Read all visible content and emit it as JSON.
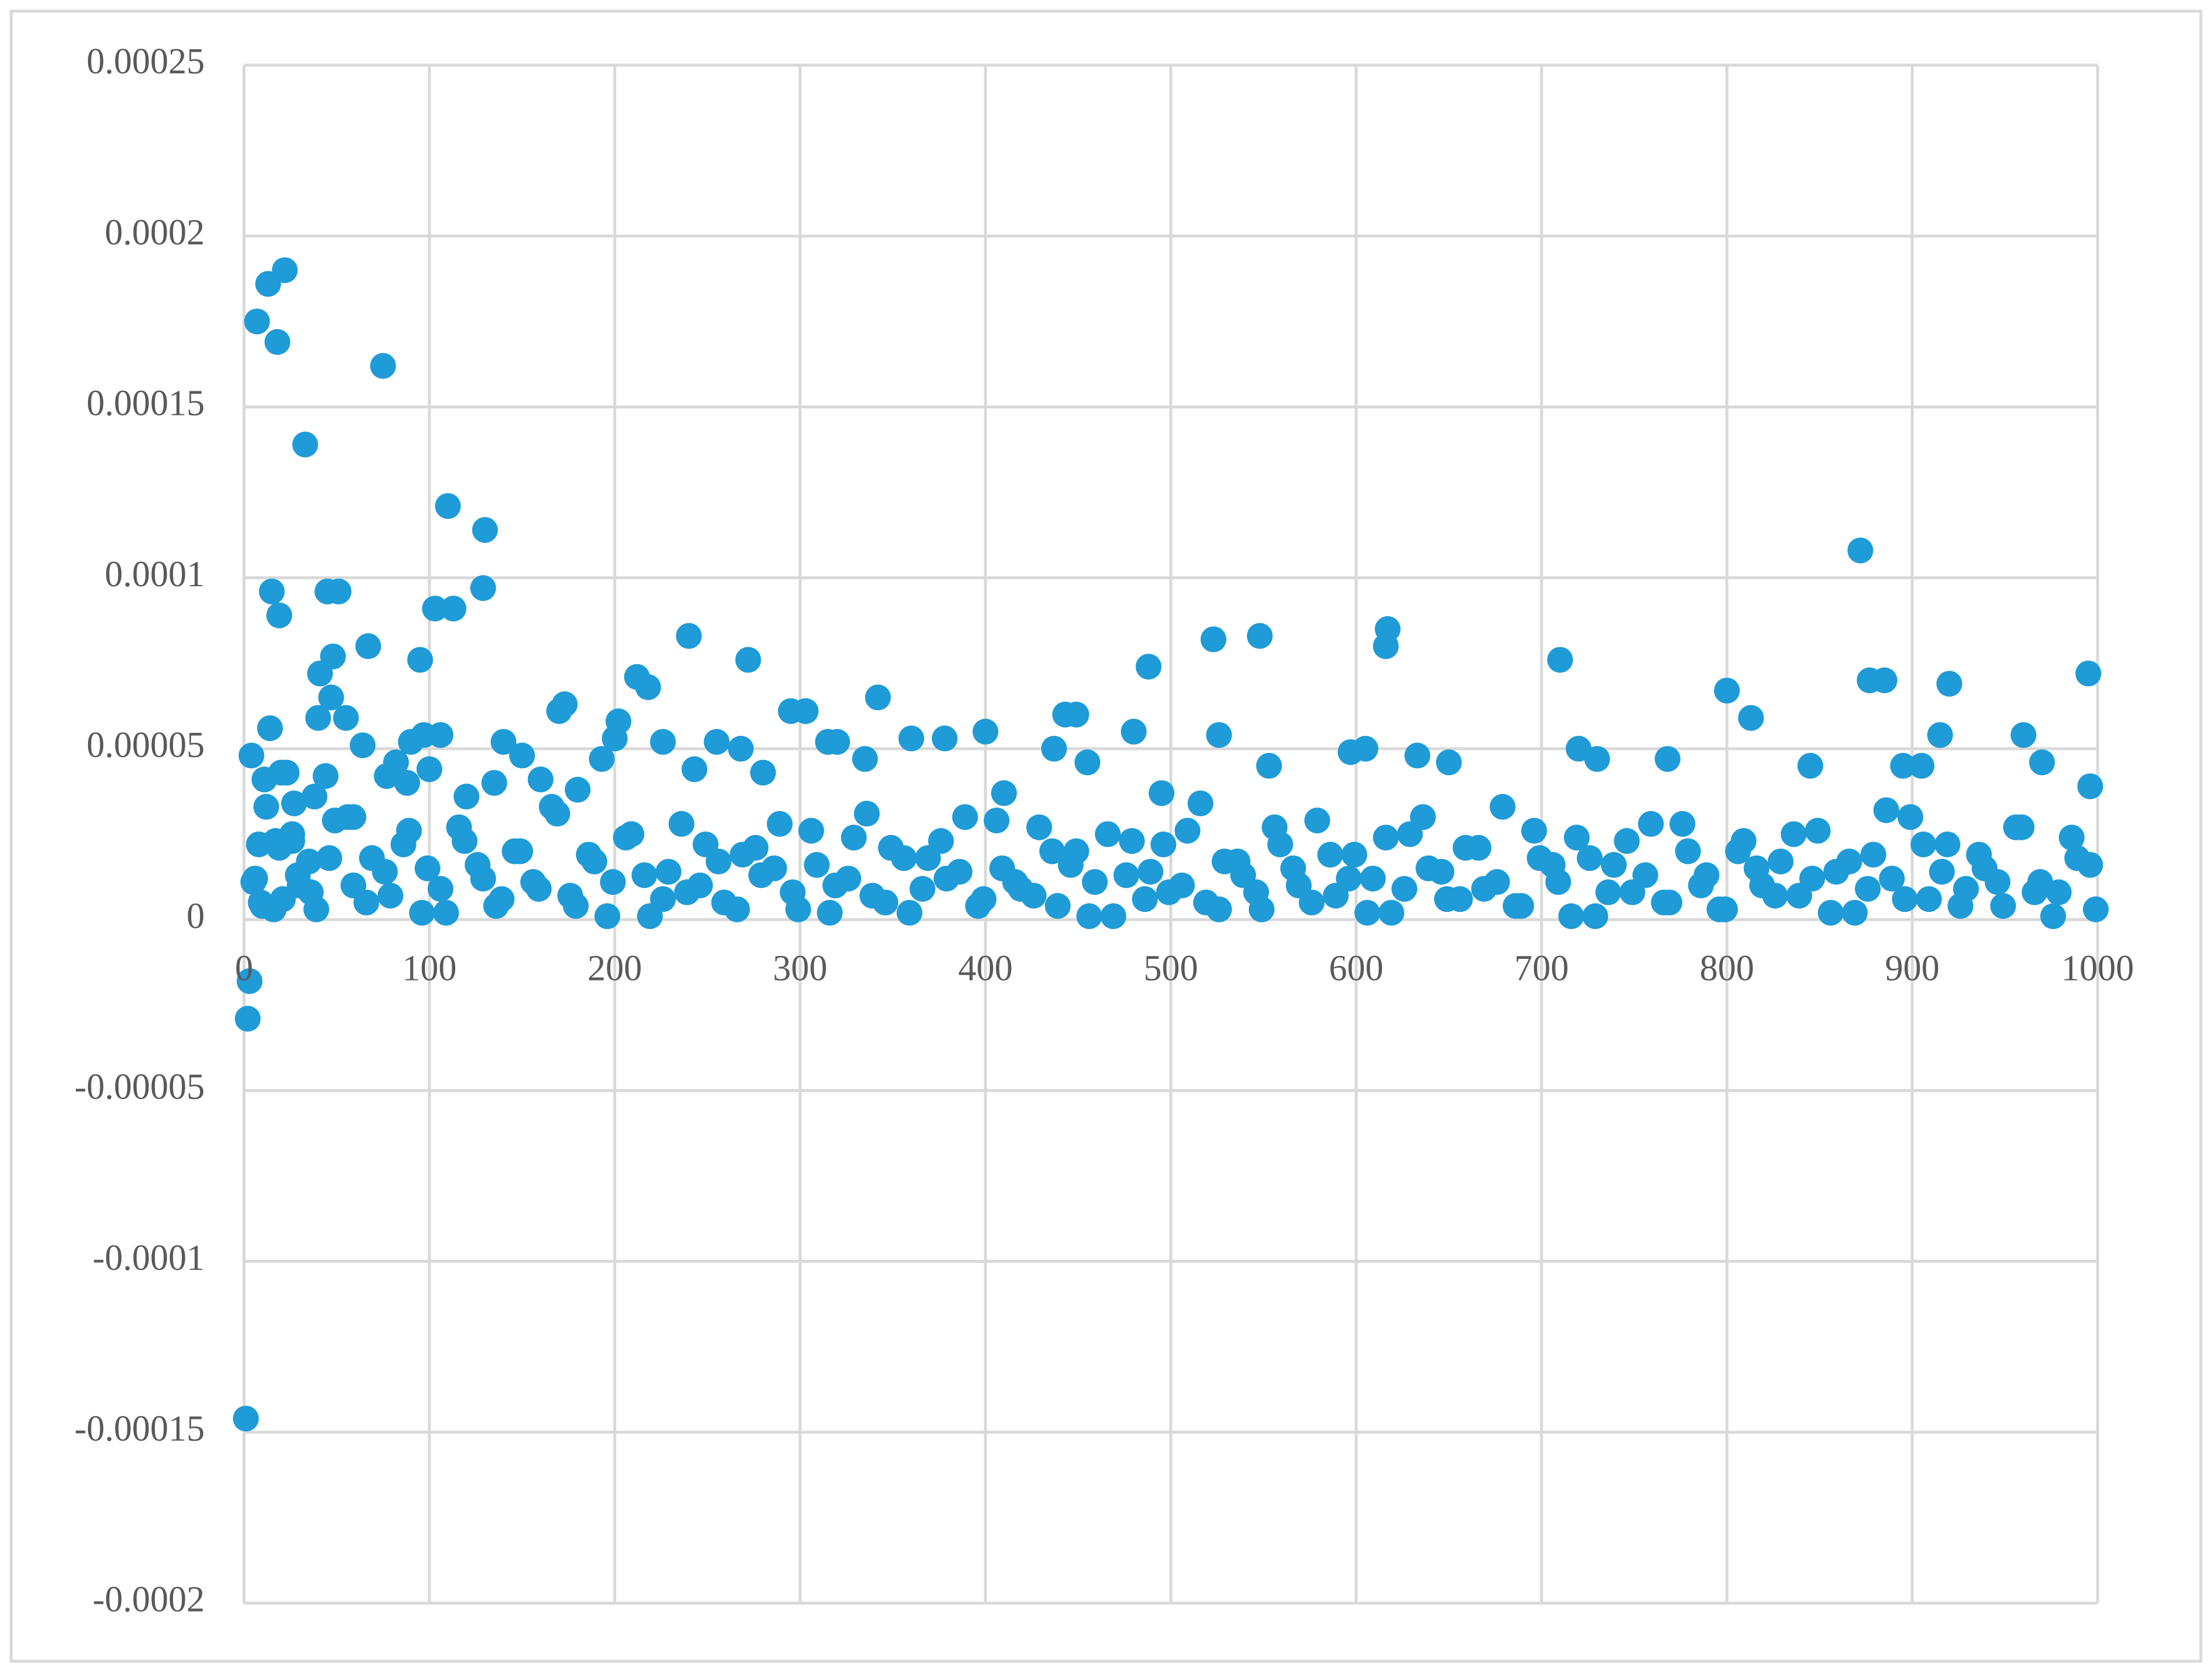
{
  "chart_data": {
    "type": "scatter",
    "color": "#1f9bd7",
    "grid": true,
    "xlim": [
      0,
      1000
    ],
    "ylim": [
      -0.0002,
      0.00025
    ],
    "xticks": [
      0,
      100,
      200,
      300,
      400,
      500,
      600,
      700,
      800,
      900,
      1000
    ],
    "yticks": [
      -0.0002,
      -0.00015,
      -0.0001,
      -5e-05,
      0,
      5e-05,
      0.0001,
      0.00015,
      0.0002,
      0.00025
    ],
    "x": [
      1,
      2,
      3,
      4,
      5,
      7,
      8,
      10,
      11,
      12,
      13,
      14,
      15,
      17,
      18,
      19,
      20,
      21,
      22,
      23,
      26,
      27,
      30,
      33,
      35,
      38,
      40,
      41,
      44,
      45,
      47,
      48,
      51,
      55,
      59,
      64,
      67,
      75,
      77,
      82,
      88,
      90,
      95,
      97,
      100,
      103,
      106,
      110,
      113,
      120,
      129,
      130,
      135,
      140,
      150,
      160,
      170,
      173,
      180,
      193,
      200,
      202,
      212,
      218,
      226,
      240,
      243,
      255,
      268,
      272,
      280,
      295,
      303,
      315,
      320,
      335,
      342,
      360,
      378,
      400,
      410,
      437,
      443,
      449,
      455,
      480,
      488,
      495,
      523,
      526,
      548,
      553,
      597,
      605,
      616,
      617,
      633,
      650,
      710,
      720,
      730,
      768,
      800,
      813,
      845,
      872,
      877,
      885,
      895,
      905,
      915,
      920,
      960,
      970,
      995,
      996,
      6,
      16,
      26,
      36,
      46,
      56,
      66,
      76,
      86,
      96,
      106,
      116,
      126,
      136,
      146,
      156,
      166,
      176,
      186,
      196,
      206,
      216,
      226,
      236,
      246,
      256,
      266,
      276,
      286,
      296,
      306,
      316,
      326,
      336,
      346,
      356,
      366,
      376,
      386,
      396,
      406,
      416,
      426,
      436,
      446,
      456,
      466,
      476,
      486,
      496,
      506,
      516,
      526,
      536,
      546,
      556,
      566,
      576,
      586,
      596,
      606,
      616,
      626,
      636,
      646,
      656,
      666,
      676,
      686,
      696,
      706,
      716,
      726,
      736,
      746,
      756,
      766,
      776,
      786,
      796,
      806,
      816,
      826,
      836,
      846,
      856,
      866,
      876,
      886,
      896,
      906,
      916,
      926,
      936,
      946,
      956,
      966,
      976,
      986,
      996,
      9,
      19,
      29,
      39,
      49,
      59,
      69,
      79,
      89,
      99,
      109,
      119,
      129,
      139,
      149,
      159,
      169,
      179,
      189,
      199,
      209,
      219,
      229,
      239,
      249,
      259,
      269,
      279,
      289,
      299,
      309,
      319,
      329,
      339,
      349,
      359,
      369,
      379,
      389,
      399,
      409,
      419,
      429,
      439,
      449,
      459,
      469,
      479,
      489,
      499,
      509,
      519,
      529,
      539,
      549,
      559,
      569,
      579,
      589,
      599,
      609,
      619,
      629,
      639,
      649,
      659,
      669,
      679,
      689,
      699,
      709,
      719,
      729,
      739,
      749,
      759,
      769,
      779,
      789,
      799,
      809,
      819,
      829,
      839,
      849,
      859,
      869,
      879,
      889,
      899,
      909,
      919,
      929,
      939,
      949,
      959,
      969,
      979,
      989,
      999
    ],
    "values": [
      -0.000146,
      -2.9e-05,
      -1.8e-05,
      4.8e-05,
      1.1e-05,
      0.000175,
      2.2e-05,
      4e-06,
      4.1e-05,
      3.3e-05,
      0.000186,
      5.6e-05,
      9.6e-05,
      2.3e-05,
      0.000169,
      8.9e-05,
      4.3e-05,
      6e-06,
      0.00019,
      4.3e-05,
      2.3e-05,
      3.4e-05,
      1e-05,
      0.000139,
      1.7e-05,
      3.6e-05,
      5.9e-05,
      7.2e-05,
      4.2e-05,
      9.6e-05,
      6.5e-05,
      7.7e-05,
      9.6e-05,
      5.9e-05,
      3e-05,
      5.1e-05,
      8e-05,
      0.000162,
      4.2e-05,
      4.6e-05,
      4e-05,
      5.2e-05,
      7.6e-05,
      5.4e-05,
      4.4e-05,
      9.1e-05,
      5.4e-05,
      0.000121,
      9.1e-05,
      3.6e-05,
      9.7e-05,
      0.000114,
      4e-05,
      5.2e-05,
      4.8e-05,
      4.1e-05,
      6.1e-05,
      6.3e-05,
      3.8e-05,
      4.7e-05,
      5.3e-05,
      5.8e-05,
      7.1e-05,
      6.8e-05,
      5.2e-05,
      8.3e-05,
      4.4e-05,
      5.2e-05,
      5e-05,
      7.6e-05,
      4.3e-05,
      6.1e-05,
      6.1e-05,
      5.2e-05,
      5.2e-05,
      4.7e-05,
      6.5e-05,
      5.3e-05,
      5.3e-05,
      5.5e-05,
      3.7e-05,
      5e-05,
      6e-05,
      6e-05,
      4.6e-05,
      5.5e-05,
      7.4e-05,
      3.7e-05,
      8.2e-05,
      5.4e-05,
      8.3e-05,
      4.5e-05,
      4.9e-05,
      5e-05,
      8e-05,
      8.5e-05,
      4.8e-05,
      4.6e-05,
      7.6e-05,
      5e-05,
      4.7e-05,
      4.7e-05,
      6.7e-05,
      5.9e-05,
      4.5e-05,
      0.000108,
      7e-05,
      7e-05,
      4.5e-05,
      4.5e-05,
      5.4e-05,
      6.9e-05,
      5.4e-05,
      4.6e-05,
      7.2e-05,
      3.9e-05,
      1.2e-05,
      3e-06,
      2.5e-05,
      8e-06,
      1.8e-05,
      3e-05,
      5e-06,
      1.4e-05,
      2.2e-05,
      2e-06,
      9e-06,
      2.7e-05,
      1.6e-05,
      4e-06,
      2e-05,
      1.1e-05,
      3.3e-05,
      7e-06,
      1.9e-05,
      1e-06,
      2.4e-05,
      1.3e-05,
      6e-06,
      2.8e-05,
      1e-05,
      1.7e-05,
      3e-06,
      2.1e-05,
      1.5e-05,
      8e-06,
      2.6e-05,
      2e-06,
      1.2e-05,
      3.1e-05,
      5e-06,
      1.8e-05,
      9e-06,
      2.3e-05,
      1.4e-05,
      4e-06,
      2.9e-05,
      1.1e-05,
      7e-06,
      2e-05,
      1.6e-05,
      1e-06,
      2.5e-05,
      1.3e-05,
      6e-06,
      2.2e-05,
      1e-05,
      3.4e-05,
      3e-06,
      1.7e-05,
      8e-06,
      2.7e-05,
      1.5e-05,
      5e-06,
      1.9e-05,
      1.2e-05,
      2e-06,
      2.4e-05,
      9e-06,
      3e-05,
      1.4e-05,
      6e-06,
      2.1e-05,
      1.1e-05,
      4e-06,
      2.6e-05,
      1.6e-05,
      1e-06,
      1.8e-05,
      8e-06,
      2.3e-05,
      1.3e-05,
      5e-06,
      2.8e-05,
      1e-05,
      3e-06,
      2e-05,
      1.5e-05,
      7e-06,
      2.5e-05,
      1.2e-05,
      2e-06,
      1.7e-05,
      9e-06,
      3.2e-05,
      6e-06,
      2.2e-05,
      1.4e-05,
      4e-06,
      1.9e-05,
      1.1e-05,
      2.7e-05,
      8e-06,
      1e-06,
      2.4e-05,
      1.6e-05,
      5e-06,
      2.1e-05,
      1.3e-05,
      3e-06,
      2.9e-05,
      1e-05,
      1.8e-05,
      7e-06,
      2.6e-05,
      1.5e-05,
      2e-06,
      2.3e-05,
      1.2e-05,
      6e-06,
      2e-05,
      9e-06,
      3.1e-05,
      4e-06,
      1.7e-05,
      1.1e-05,
      2.5e-05,
      1e-06,
      1.4e-05,
      8e-06,
      2.2e-05,
      5e-06,
      1.9e-05,
      1.3e-05,
      2.8e-05,
      3e-06,
      1.6e-05,
      1e-05,
      2.4e-05,
      7e-06,
      2.1e-05,
      2e-06,
      1.8e-05,
      1.2e-05,
      3e-05,
      6e-06,
      1.5e-05,
      9e-06,
      2.7e-05,
      4e-06,
      2e-05,
      1.1e-05,
      1e-06,
      2.3e-05,
      1.4e-05,
      8e-06,
      2.6e-05,
      5e-06,
      1.7e-05,
      1.3e-05,
      3e-06,
      2.2e-05,
      1e-05,
      2.9e-05,
      7e-06,
      1.9e-05,
      1.2e-05,
      2e-06,
      2.5e-05,
      1.5e-05,
      6e-06,
      2.1e-05,
      9e-06,
      3.3e-05,
      4e-06,
      1.8e-05,
      1.1e-05,
      2.4e-05,
      1e-06,
      1.6e-05,
      8e-06,
      2.8e-05,
      5e-06,
      2e-05,
      1.3e-05,
      3e-06,
      2.3e-05,
      1e-05,
      1.7e-05,
      7e-06,
      2.6e-05,
      1.4e-05,
      2e-06,
      1.9e-05,
      1.2e-05,
      3e-05,
      6e-06,
      2.2e-05,
      9e-06,
      1.5e-05,
      4e-06,
      2.7e-05,
      1.1e-05,
      8e-06,
      1.8e-05,
      3e-06
    ]
  }
}
